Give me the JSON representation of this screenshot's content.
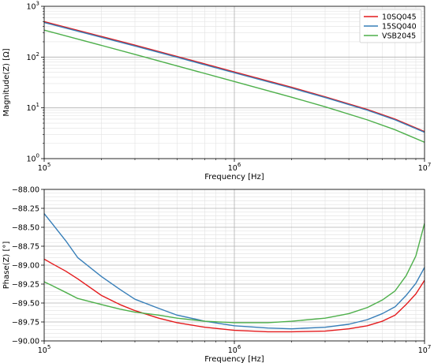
{
  "chart_data": [
    {
      "type": "line",
      "xlabel": "Frequency [Hz]",
      "ylabel": "Magnitude(Z) [Ω]",
      "xscale": "log",
      "yscale": "log",
      "xlim": [
        100000,
        10000000
      ],
      "ylim": [
        1,
        1000
      ],
      "x_ticks": [
        {
          "value": 100000,
          "base": "10",
          "exp": "5"
        },
        {
          "value": 1000000,
          "base": "10",
          "exp": "6"
        },
        {
          "value": 10000000,
          "base": "10",
          "exp": "7"
        }
      ],
      "y_ticks": [
        {
          "value": 1,
          "base": "10",
          "exp": "0"
        },
        {
          "value": 10,
          "base": "10",
          "exp": "1"
        },
        {
          "value": 100,
          "base": "10",
          "exp": "2"
        },
        {
          "value": 1000,
          "base": "10",
          "exp": "3"
        }
      ],
      "grid": "major and minor",
      "legend_position": "top-right",
      "series": [
        {
          "name": "10SQ045",
          "color": "#e41a1c",
          "x": [
            100000,
            200000,
            300000,
            500000,
            1000000,
            2000000,
            3000000,
            5000000,
            7000000,
            10000000
          ],
          "y": [
            500,
            255,
            172,
            103,
            51,
            25.5,
            16.5,
            9.3,
            6.0,
            3.4
          ]
        },
        {
          "name": "15SQ040",
          "color": "#377eb8",
          "x": [
            100000,
            200000,
            300000,
            500000,
            1000000,
            2000000,
            3000000,
            5000000,
            7000000,
            10000000
          ],
          "y": [
            480,
            245,
            165,
            99,
            49,
            24.5,
            16.0,
            9.0,
            5.8,
            3.3
          ]
        },
        {
          "name": "VSB2045",
          "color": "#4daf4a",
          "x": [
            100000,
            200000,
            300000,
            500000,
            1000000,
            2000000,
            3000000,
            5000000,
            7000000,
            10000000
          ],
          "y": [
            340,
            170,
            113,
            67,
            33,
            16.2,
            10.5,
            5.8,
            3.7,
            2.1
          ]
        }
      ]
    },
    {
      "type": "line",
      "xlabel": "Frequency [Hz]",
      "ylabel": "Phase(Z) [°]",
      "xscale": "log",
      "xlim": [
        100000,
        10000000
      ],
      "ylim": [
        -90.0,
        -88.0
      ],
      "x_ticks": [
        {
          "value": 100000,
          "base": "10",
          "exp": "5"
        },
        {
          "value": 1000000,
          "base": "10",
          "exp": "6"
        },
        {
          "value": 10000000,
          "base": "10",
          "exp": "7"
        }
      ],
      "y_ticks": [
        {
          "value": -88.0,
          "label": "−88.00"
        },
        {
          "value": -88.25,
          "label": "−88.25"
        },
        {
          "value": -88.5,
          "label": "−88.50"
        },
        {
          "value": -88.75,
          "label": "−88.75"
        },
        {
          "value": -89.0,
          "label": "−89.00"
        },
        {
          "value": -89.25,
          "label": "−89.25"
        },
        {
          "value": -89.5,
          "label": "−89.50"
        },
        {
          "value": -89.75,
          "label": "−89.75"
        },
        {
          "value": -90.0,
          "label": "−90.00"
        }
      ],
      "grid": "major and minor",
      "series": [
        {
          "name": "10SQ045",
          "color": "#e41a1c",
          "x": [
            100000,
            110000,
            130000,
            150000,
            200000,
            250000,
            300000,
            400000,
            500000,
            700000,
            1000000,
            1500000,
            2000000,
            3000000,
            4000000,
            5000000,
            6000000,
            7000000,
            8000000,
            9000000,
            10000000
          ],
          "y": [
            -88.92,
            -88.98,
            -89.08,
            -89.18,
            -89.4,
            -89.52,
            -89.6,
            -89.7,
            -89.76,
            -89.82,
            -89.86,
            -89.88,
            -89.88,
            -89.87,
            -89.84,
            -89.8,
            -89.74,
            -89.66,
            -89.52,
            -89.38,
            -89.2
          ]
        },
        {
          "name": "15SQ040",
          "color": "#377eb8",
          "x": [
            100000,
            110000,
            130000,
            150000,
            200000,
            250000,
            300000,
            400000,
            500000,
            700000,
            1000000,
            1500000,
            2000000,
            3000000,
            4000000,
            5000000,
            6000000,
            7000000,
            8000000,
            9000000,
            10000000
          ],
          "y": [
            -88.32,
            -88.45,
            -88.68,
            -88.9,
            -89.15,
            -89.32,
            -89.45,
            -89.57,
            -89.66,
            -89.74,
            -89.8,
            -89.83,
            -89.84,
            -89.82,
            -89.78,
            -89.72,
            -89.64,
            -89.55,
            -89.4,
            -89.24,
            -89.03
          ]
        },
        {
          "name": "VSB2045",
          "color": "#4daf4a",
          "x": [
            100000,
            110000,
            130000,
            150000,
            200000,
            250000,
            300000,
            400000,
            500000,
            700000,
            1000000,
            1500000,
            2000000,
            3000000,
            4000000,
            5000000,
            6000000,
            7000000,
            8000000,
            9000000,
            10000000
          ],
          "y": [
            -89.22,
            -89.27,
            -89.36,
            -89.44,
            -89.52,
            -89.58,
            -89.62,
            -89.66,
            -89.7,
            -89.74,
            -89.76,
            -89.76,
            -89.74,
            -89.7,
            -89.64,
            -89.56,
            -89.46,
            -89.34,
            -89.14,
            -88.88,
            -88.45
          ]
        }
      ]
    }
  ]
}
